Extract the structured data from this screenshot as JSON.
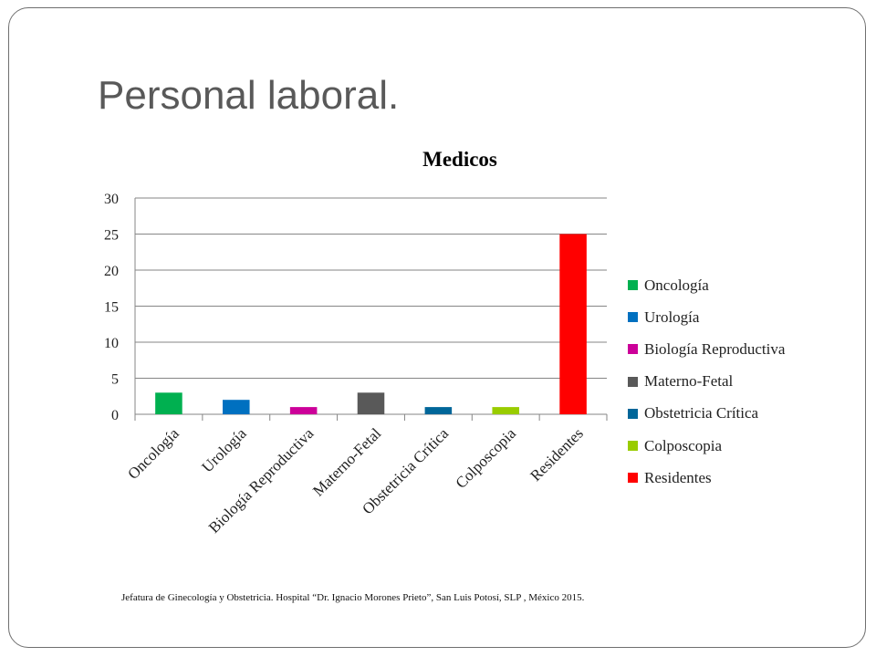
{
  "slide": {
    "title": "Personal laboral.",
    "source": "Jefatura de Ginecología y Obstetricia. Hospital “Dr. Ignacio Morones Prieto”, San Luis Potosí, SLP , México 2015."
  },
  "chart_data": {
    "type": "bar",
    "title": "Medicos",
    "xlabel": "",
    "ylabel": "",
    "categories": [
      "Oncología",
      "Urología",
      "Biología Reproductiva",
      "Materno-Fetal",
      "Obstetricia Crítica",
      "Colposcopia",
      "Residentes"
    ],
    "values": [
      3,
      2,
      1,
      3,
      1,
      1,
      25
    ],
    "colors": [
      "#00b050",
      "#0070c0",
      "#cc0099",
      "#595959",
      "#006699",
      "#99cc00",
      "#ff0000"
    ],
    "ylim": [
      0,
      30
    ],
    "yticks": [
      0,
      5,
      10,
      15,
      20,
      25,
      30
    ],
    "grid": true,
    "legend_position": "right",
    "legend": [
      "Oncología",
      "Urología",
      "Biología Reproductiva",
      "Materno-Fetal",
      "Obstetricia Crítica",
      "Colposcopia",
      "Residentes"
    ]
  }
}
